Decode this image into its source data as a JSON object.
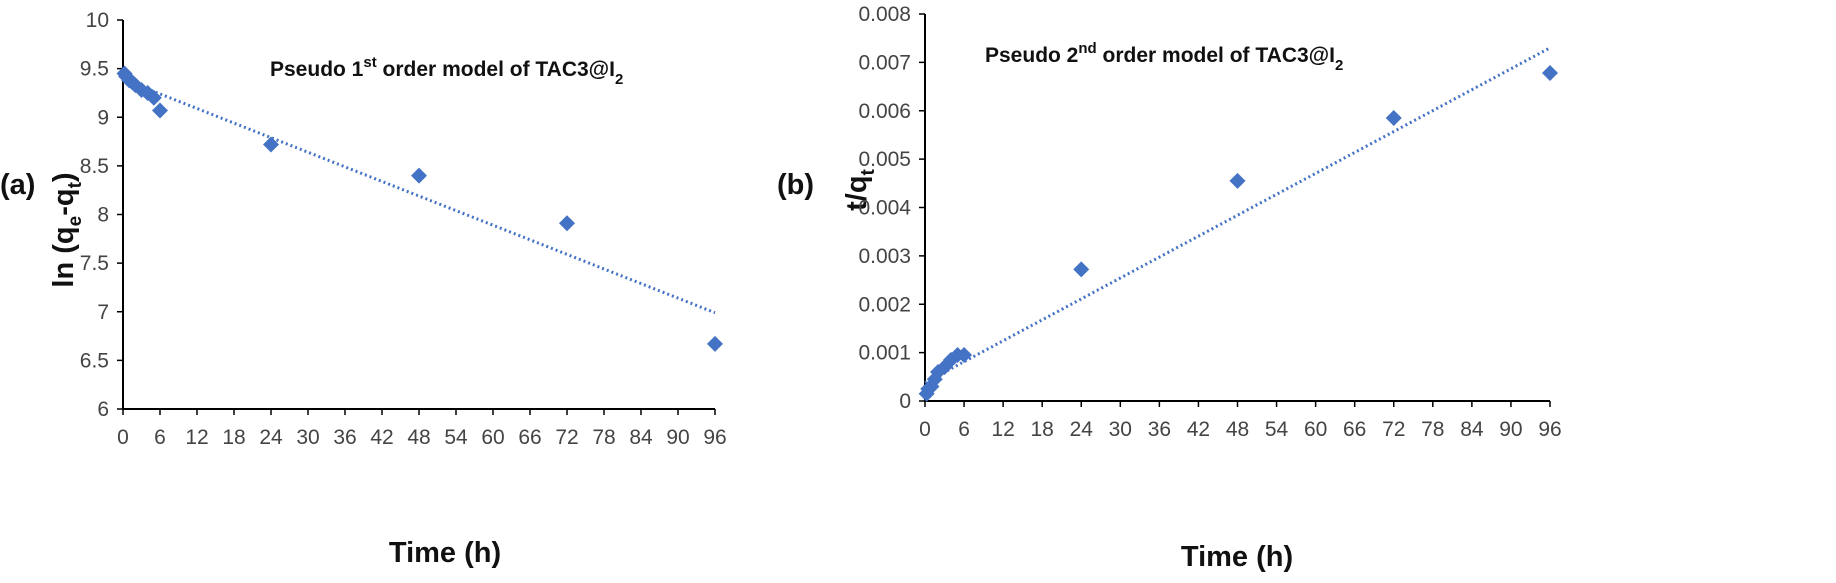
{
  "colors": {
    "marker": "#4472C4",
    "trendline": "#4472C4",
    "axis": "#000000",
    "background": "#ffffff"
  },
  "chart_data": [
    {
      "type": "scatter",
      "panel_label": "(a)",
      "title": "Pseudo 1st order model of TAC3@I2",
      "title_parts": {
        "pre": "Pseudo 1",
        "sup": "st",
        "mid": " order model of TAC3@I",
        "sub": "2"
      },
      "xlabel": "Time (h)",
      "ylabel": "ln (qe-qt)",
      "ylabel_parts": {
        "a": "ln (q",
        "sub1": "e",
        "b": "-q",
        "sub2": "t",
        "c": ")"
      },
      "xlim": [
        0,
        96
      ],
      "ylim": [
        6,
        10
      ],
      "xticks": [
        0,
        6,
        12,
        18,
        24,
        30,
        36,
        42,
        48,
        54,
        60,
        66,
        72,
        78,
        84,
        90,
        96
      ],
      "yticks": [
        6,
        6.5,
        7,
        7.5,
        8,
        8.5,
        9,
        9.5,
        10
      ],
      "yticks_text": [
        "6",
        "6.5",
        "7",
        "7.5",
        "8",
        "8.5",
        "9",
        "9.5",
        "10"
      ],
      "grid": false,
      "marker": "diamond",
      "series": [
        {
          "x": [
            0.25,
            0.5,
            1,
            1.5,
            2,
            3,
            4,
            5,
            6,
            24,
            48,
            72,
            96
          ],
          "y": [
            9.45,
            9.42,
            9.38,
            9.36,
            9.33,
            9.28,
            9.25,
            9.2,
            9.07,
            8.72,
            8.4,
            7.91,
            6.67
          ]
        }
      ],
      "trendline": {
        "type": "linear",
        "x": [
          0,
          96
        ],
        "y": [
          9.39,
          6.99
        ]
      }
    },
    {
      "type": "scatter",
      "panel_label": "(b)",
      "title": "Pseudo 2nd order model of TAC3@I2",
      "title_parts": {
        "pre": "Pseudo 2",
        "sup": "nd",
        "mid": " order model of TAC3@I",
        "sub": "2"
      },
      "xlabel": "Time (h)",
      "ylabel": "t/qt",
      "ylabel_parts": {
        "a": "t/q",
        "sub1": "t"
      },
      "xlim": [
        0,
        96
      ],
      "ylim": [
        0,
        0.008
      ],
      "xticks": [
        0,
        6,
        12,
        18,
        24,
        30,
        36,
        42,
        48,
        54,
        60,
        66,
        72,
        78,
        84,
        90,
        96
      ],
      "yticks": [
        0,
        0.001,
        0.002,
        0.003,
        0.004,
        0.005,
        0.006,
        0.007,
        0.008
      ],
      "yticks_text": [
        "0",
        "0.001",
        "0.002",
        "0.003",
        "0.004",
        "0.005",
        "0.006",
        "0.007",
        "0.008"
      ],
      "grid": false,
      "marker": "diamond",
      "series": [
        {
          "x": [
            0.25,
            0.5,
            1,
            1.5,
            2,
            3,
            4,
            5,
            6,
            24,
            48,
            72,
            96
          ],
          "y": [
            0.00015,
            0.00025,
            0.0003,
            0.00045,
            0.0006,
            0.0007,
            0.00085,
            0.00095,
            0.00095,
            0.00272,
            0.00455,
            0.00585,
            0.00678
          ]
        }
      ],
      "trendline": {
        "type": "linear",
        "x": [
          0,
          96
        ],
        "y": [
          0.00038,
          0.0073
        ]
      }
    }
  ]
}
